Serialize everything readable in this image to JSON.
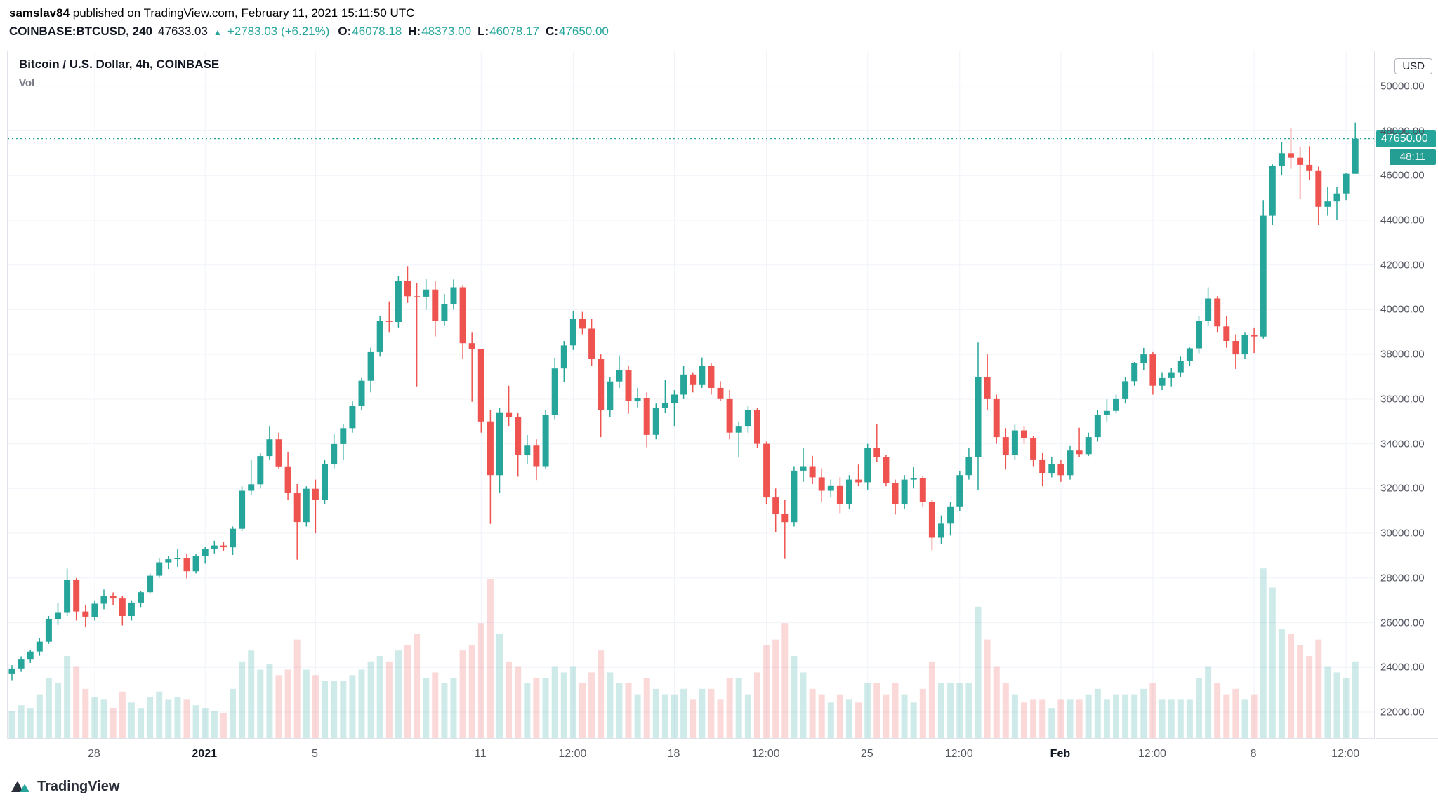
{
  "header": {
    "author": "samslav84",
    "published_text": " published on TradingView.com, February 11, 2021 15:11:50 UTC",
    "symbol": "COINBASE:BTCUSD, 240",
    "last_price": "47633.03",
    "arrow": "▲",
    "change": "+2783.03 (+6.21%)",
    "ohlc": [
      {
        "label": "O:",
        "value": "46078.18"
      },
      {
        "label": "H:",
        "value": "48373.00"
      },
      {
        "label": "L:",
        "value": "46078.17"
      },
      {
        "label": "C:",
        "value": "47650.00"
      }
    ]
  },
  "legend": {
    "title": "Bitcoin / U.S. Dollar, 4h, COINBASE",
    "indicator": "Vol"
  },
  "price_scale": {
    "currency_badge": "USD",
    "current_price_label": "47650.00",
    "countdown": "48:11"
  },
  "footer": {
    "brand": "TradingView"
  },
  "colors": {
    "up": "#26a69a",
    "down": "#ef5350",
    "vol_up": "rgba(38,166,154,0.22)",
    "vol_down": "rgba(239,83,80,0.22)",
    "grid": "#f0f3fa",
    "accent_text": "#26a69a"
  },
  "chart_data": {
    "type": "candlestick",
    "title": "Bitcoin / U.S. Dollar, 4h, COINBASE",
    "symbol": "COINBASE:BTCUSD",
    "interval_label": "240",
    "legend_position": "top-left",
    "grid": "faint",
    "price_range": [
      20840,
      51560
    ],
    "price_ticks": [
      50000,
      48000,
      46000,
      44000,
      42000,
      40000,
      38000,
      36000,
      34000,
      32000,
      30000,
      28000,
      26000,
      24000,
      22000
    ],
    "current_price": 47650.0,
    "time_ticks": [
      {
        "i": 9,
        "label": "28",
        "bold": false
      },
      {
        "i": 21,
        "label": "2021",
        "bold": true
      },
      {
        "i": 33,
        "label": "5",
        "bold": false
      },
      {
        "i": 51,
        "label": "11",
        "bold": false
      },
      {
        "i": 61,
        "label": "12:00",
        "bold": false
      },
      {
        "i": 72,
        "label": "18",
        "bold": false
      },
      {
        "i": 82,
        "label": "12:00",
        "bold": false
      },
      {
        "i": 93,
        "label": "25",
        "bold": false
      },
      {
        "i": 103,
        "label": "12:00",
        "bold": false
      },
      {
        "i": 114,
        "label": "Feb",
        "bold": true
      },
      {
        "i": 124,
        "label": "12:00",
        "bold": false
      },
      {
        "i": 135,
        "label": "8",
        "bold": false
      },
      {
        "i": 145,
        "label": "12:00",
        "bold": false
      }
    ],
    "candle_format": [
      "open",
      "high",
      "low",
      "close",
      "volume_rel"
    ],
    "candles": [
      [
        23730,
        24100,
        23430,
        23950,
        10
      ],
      [
        23950,
        24500,
        23800,
        24350,
        12
      ],
      [
        24350,
        24780,
        24200,
        24710,
        11
      ],
      [
        24710,
        25300,
        24520,
        25150,
        16
      ],
      [
        25150,
        26300,
        25050,
        26150,
        22
      ],
      [
        26150,
        26870,
        25900,
        26440,
        20
      ],
      [
        26440,
        28420,
        26300,
        27900,
        30
      ],
      [
        27900,
        28000,
        26100,
        26500,
        26
      ],
      [
        26500,
        26800,
        25830,
        26270,
        18
      ],
      [
        26270,
        27000,
        26100,
        26850,
        15
      ],
      [
        26850,
        27480,
        26600,
        27200,
        14
      ],
      [
        27200,
        27350,
        26800,
        27080,
        11
      ],
      [
        27080,
        27200,
        25880,
        26300,
        17
      ],
      [
        26300,
        27000,
        26100,
        26900,
        13
      ],
      [
        26900,
        27410,
        26700,
        27360,
        11
      ],
      [
        27360,
        28200,
        27320,
        28100,
        15
      ],
      [
        28100,
        28900,
        28000,
        28700,
        17
      ],
      [
        28700,
        28990,
        28400,
        28840,
        14
      ],
      [
        28840,
        29300,
        28500,
        28900,
        15
      ],
      [
        28900,
        29100,
        27980,
        28300,
        14
      ],
      [
        28300,
        29090,
        28200,
        29000,
        12
      ],
      [
        29000,
        29400,
        28640,
        29300,
        11
      ],
      [
        29300,
        29660,
        29100,
        29450,
        10
      ],
      [
        29450,
        29600,
        29200,
        29370,
        9
      ],
      [
        29370,
        30300,
        29030,
        30200,
        18
      ],
      [
        30200,
        32100,
        30100,
        31900,
        28
      ],
      [
        31900,
        33300,
        31700,
        32190,
        32
      ],
      [
        32190,
        33600,
        32000,
        33450,
        25
      ],
      [
        33450,
        34800,
        33300,
        34200,
        27
      ],
      [
        34200,
        34500,
        32900,
        32990,
        23
      ],
      [
        32990,
        33640,
        31500,
        31800,
        25
      ],
      [
        31800,
        32200,
        28820,
        30500,
        36
      ],
      [
        30500,
        32100,
        30300,
        31990,
        25
      ],
      [
        31990,
        32400,
        30000,
        31500,
        23
      ],
      [
        31500,
        33300,
        31300,
        33100,
        21
      ],
      [
        33100,
        34440,
        32900,
        33990,
        21
      ],
      [
        33990,
        34900,
        33290,
        34700,
        21
      ],
      [
        34700,
        35900,
        34500,
        35700,
        23
      ],
      [
        35700,
        36940,
        35500,
        36820,
        25
      ],
      [
        36820,
        38300,
        36300,
        38100,
        28
      ],
      [
        38100,
        39700,
        37900,
        39500,
        30
      ],
      [
        39500,
        40370,
        39000,
        39450,
        28
      ],
      [
        39450,
        41500,
        39200,
        41300,
        32
      ],
      [
        41300,
        41950,
        40300,
        40600,
        34
      ],
      [
        40600,
        41200,
        36570,
        40580,
        38
      ],
      [
        40580,
        41380,
        40000,
        40900,
        22
      ],
      [
        40900,
        41300,
        38800,
        39500,
        24
      ],
      [
        39500,
        40700,
        39300,
        40240,
        20
      ],
      [
        40240,
        41350,
        40000,
        41000,
        22
      ],
      [
        41000,
        41100,
        37800,
        38500,
        32
      ],
      [
        38500,
        39000,
        35880,
        38240,
        34
      ],
      [
        38240,
        38250,
        34500,
        35000,
        42
      ],
      [
        35000,
        35500,
        30420,
        32600,
        58
      ],
      [
        32600,
        35600,
        31800,
        35410,
        38
      ],
      [
        35410,
        36600,
        34800,
        35200,
        28
      ],
      [
        35200,
        35400,
        32530,
        33500,
        26
      ],
      [
        33500,
        34400,
        33100,
        33920,
        20
      ],
      [
        33920,
        34200,
        32380,
        33000,
        22
      ],
      [
        33000,
        35500,
        32900,
        35300,
        22
      ],
      [
        35300,
        37850,
        35100,
        37370,
        26
      ],
      [
        37370,
        38600,
        36750,
        38400,
        24
      ],
      [
        38400,
        39950,
        38200,
        39600,
        26
      ],
      [
        39600,
        39900,
        38900,
        39150,
        20
      ],
      [
        39150,
        39600,
        37500,
        37800,
        24
      ],
      [
        37800,
        38000,
        34300,
        35500,
        32
      ],
      [
        35500,
        37000,
        35200,
        36790,
        24
      ],
      [
        36790,
        37950,
        36500,
        37300,
        20
      ],
      [
        37300,
        37500,
        35350,
        35900,
        20
      ],
      [
        35900,
        36500,
        35600,
        36050,
        16
      ],
      [
        36050,
        36300,
        33850,
        34400,
        22
      ],
      [
        34400,
        35800,
        34200,
        35600,
        18
      ],
      [
        35600,
        36850,
        35400,
        35830,
        16
      ],
      [
        35830,
        36400,
        34800,
        36200,
        16
      ],
      [
        36200,
        37470,
        36000,
        37100,
        18
      ],
      [
        37100,
        37200,
        36300,
        36630,
        14
      ],
      [
        36630,
        37860,
        36500,
        37500,
        18
      ],
      [
        37500,
        37600,
        36200,
        36500,
        18
      ],
      [
        36500,
        36800,
        35930,
        36000,
        14
      ],
      [
        36000,
        36400,
        34200,
        34500,
        22
      ],
      [
        34500,
        35000,
        33400,
        34800,
        22
      ],
      [
        34800,
        35700,
        34500,
        35500,
        16
      ],
      [
        35500,
        35600,
        33800,
        34000,
        24
      ],
      [
        34000,
        34100,
        31300,
        31600,
        34
      ],
      [
        31600,
        32000,
        30050,
        30870,
        36
      ],
      [
        30870,
        31500,
        28850,
        30500,
        42
      ],
      [
        30500,
        33000,
        30300,
        32800,
        30
      ],
      [
        32800,
        33830,
        32300,
        33000,
        24
      ],
      [
        33000,
        33460,
        32200,
        32500,
        18
      ],
      [
        32500,
        32900,
        31390,
        31900,
        16
      ],
      [
        31900,
        32400,
        31600,
        32110,
        13
      ],
      [
        32110,
        32500,
        30900,
        31300,
        16
      ],
      [
        31300,
        32600,
        31100,
        32400,
        14
      ],
      [
        32400,
        33070,
        32100,
        32280,
        13
      ],
      [
        32280,
        34000,
        31950,
        33800,
        20
      ],
      [
        33800,
        34875,
        33200,
        33400,
        20
      ],
      [
        33400,
        33500,
        32100,
        32250,
        16
      ],
      [
        32250,
        32400,
        30837,
        31300,
        20
      ],
      [
        31300,
        32600,
        31100,
        32400,
        16
      ],
      [
        32400,
        32950,
        32000,
        32470,
        13
      ],
      [
        32470,
        32560,
        31200,
        31400,
        18
      ],
      [
        31400,
        31500,
        29240,
        29800,
        28
      ],
      [
        29800,
        30800,
        29500,
        30430,
        20
      ],
      [
        30430,
        31400,
        29900,
        31200,
        20
      ],
      [
        31200,
        32800,
        31000,
        32600,
        20
      ],
      [
        32600,
        33800,
        32400,
        33410,
        20
      ],
      [
        33410,
        38530,
        31920,
        37000,
        48
      ],
      [
        37000,
        38000,
        35500,
        36000,
        36
      ],
      [
        36000,
        36200,
        34000,
        34300,
        26
      ],
      [
        34300,
        34700,
        32850,
        33500,
        20
      ],
      [
        33500,
        34850,
        33300,
        34600,
        16
      ],
      [
        34600,
        34800,
        34000,
        34270,
        13
      ],
      [
        34270,
        34350,
        33000,
        33300,
        14
      ],
      [
        33300,
        33600,
        32100,
        32700,
        14
      ],
      [
        32700,
        33400,
        32500,
        33110,
        11
      ],
      [
        33110,
        33300,
        32300,
        32600,
        14
      ],
      [
        32600,
        33900,
        32400,
        33700,
        14
      ],
      [
        33700,
        34720,
        33400,
        33540,
        14
      ],
      [
        33540,
        34500,
        33450,
        34300,
        16
      ],
      [
        34300,
        35500,
        34100,
        35300,
        18
      ],
      [
        35300,
        35990,
        35000,
        35470,
        14
      ],
      [
        35470,
        36200,
        35360,
        36000,
        16
      ],
      [
        36000,
        37000,
        35800,
        36800,
        16
      ],
      [
        36800,
        37660,
        36600,
        37620,
        16
      ],
      [
        37620,
        38290,
        37300,
        38000,
        18
      ],
      [
        38000,
        38100,
        36200,
        36600,
        20
      ],
      [
        36600,
        37200,
        36400,
        36940,
        14
      ],
      [
        36940,
        37400,
        36570,
        37200,
        14
      ],
      [
        37200,
        37900,
        37000,
        37700,
        14
      ],
      [
        37700,
        38310,
        37500,
        38270,
        14
      ],
      [
        38270,
        39700,
        38050,
        39500,
        22
      ],
      [
        39500,
        41000,
        39300,
        40500,
        26
      ],
      [
        40500,
        40600,
        39000,
        39250,
        20
      ],
      [
        39250,
        39700,
        38300,
        38600,
        16
      ],
      [
        38600,
        38900,
        37350,
        38000,
        18
      ],
      [
        38000,
        39000,
        37800,
        38870,
        14
      ],
      [
        38870,
        39200,
        38060,
        38800,
        16
      ],
      [
        38800,
        44900,
        38700,
        44200,
        62
      ],
      [
        44200,
        46500,
        43800,
        46430,
        55
      ],
      [
        46430,
        47500,
        46000,
        47000,
        40
      ],
      [
        47000,
        48140,
        46300,
        46800,
        38
      ],
      [
        46800,
        47300,
        44960,
        46480,
        34
      ],
      [
        46480,
        47310,
        45800,
        46200,
        30
      ],
      [
        46200,
        46400,
        43800,
        44600,
        36
      ],
      [
        44600,
        45500,
        44200,
        44840,
        26
      ],
      [
        44840,
        45500,
        44000,
        45200,
        24
      ],
      [
        45200,
        46100,
        44900,
        46078,
        22
      ],
      [
        46078,
        48373,
        46078,
        47650,
        28
      ]
    ]
  }
}
